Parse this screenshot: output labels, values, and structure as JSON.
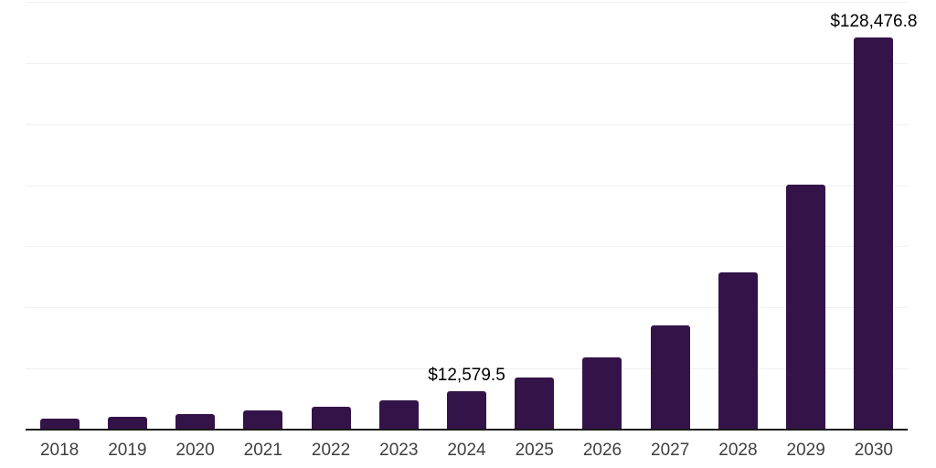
{
  "chart_data": {
    "type": "bar",
    "title": "",
    "xlabel": "",
    "ylabel": "",
    "categories": [
      "2018",
      "2019",
      "2020",
      "2021",
      "2022",
      "2023",
      "2024",
      "2025",
      "2026",
      "2027",
      "2028",
      "2029",
      "2030"
    ],
    "values": [
      3450,
      4300,
      5200,
      6400,
      7400,
      9700,
      12579.5,
      17200,
      23600,
      34100,
      51400,
      80100,
      128476.8
    ],
    "data_labels": {
      "2024": "$12,579.5",
      "2030": "$128,476.8"
    },
    "ylim": [
      0,
      140000
    ],
    "gridline_interval": 20000,
    "grid": "horizontal",
    "legend": "none",
    "colors": {
      "bar": "#341349",
      "axis_line": "#1a1a1a",
      "gridline": "#f0f0f0",
      "tick_label": "#3f3f3f",
      "data_label": "#000000",
      "background": "#ffffff"
    }
  }
}
